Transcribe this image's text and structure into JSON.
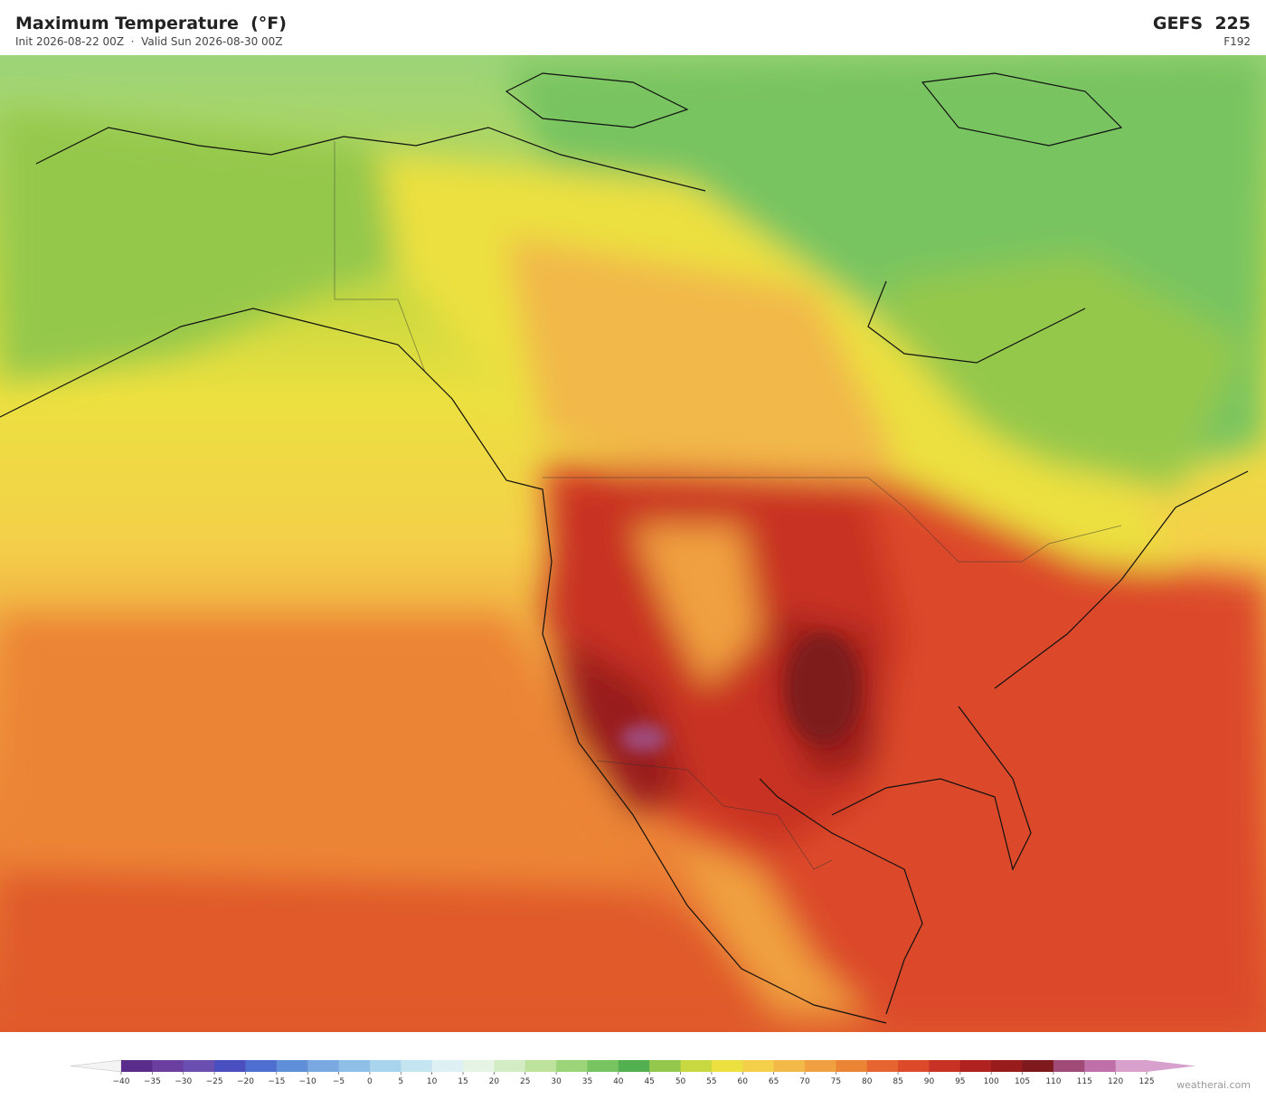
{
  "header": {
    "title": "Maximum Temperature  (°F)",
    "subtitle": "Init 2026-08-22 00Z  ·  Valid Sun 2026-08-30 00Z",
    "model": "GEFS  225",
    "run": "F192"
  },
  "colorbar": {
    "ticks": [
      {
        "value": -40,
        "label": "−40"
      },
      {
        "value": -35,
        "label": "−35"
      },
      {
        "value": -30,
        "label": "−30"
      },
      {
        "value": -25,
        "label": "−25"
      },
      {
        "value": -20,
        "label": "−20"
      },
      {
        "value": -15,
        "label": "−15"
      },
      {
        "value": -10,
        "label": "−10"
      },
      {
        "value": -5,
        "label": "−5"
      },
      0,
      5,
      10,
      15,
      20,
      25,
      30,
      35,
      40,
      45,
      50,
      55,
      60,
      65,
      70,
      75,
      80,
      85,
      90,
      95,
      100,
      105,
      110,
      115,
      120,
      125
    ],
    "colors": [
      "#5a2d8c",
      "#6a3fa0",
      "#6b4fb0",
      "#4a4fc0",
      "#4f6fd0",
      "#5f8fd8",
      "#7aa8e0",
      "#8fbfe6",
      "#a8d4ee",
      "#c4e4f2",
      "#dff0f4",
      "#e6f4e6",
      "#d4ecc4",
      "#bce29c",
      "#9cd47a",
      "#78c460",
      "#52b050",
      "#94c84c",
      "#c8d840",
      "#ece040",
      "#f4d04a",
      "#f2b848",
      "#f0a040",
      "#ec8436",
      "#e66430",
      "#dc4a2a",
      "#c83224",
      "#b02220",
      "#981c1c",
      "#7e1a1e",
      "#a04a78",
      "#c070a8",
      "#d8a0cc"
    ],
    "under_color": "#f4f4f4",
    "over_color": "#d8a0cc"
  },
  "credit": "weatherai.com"
}
